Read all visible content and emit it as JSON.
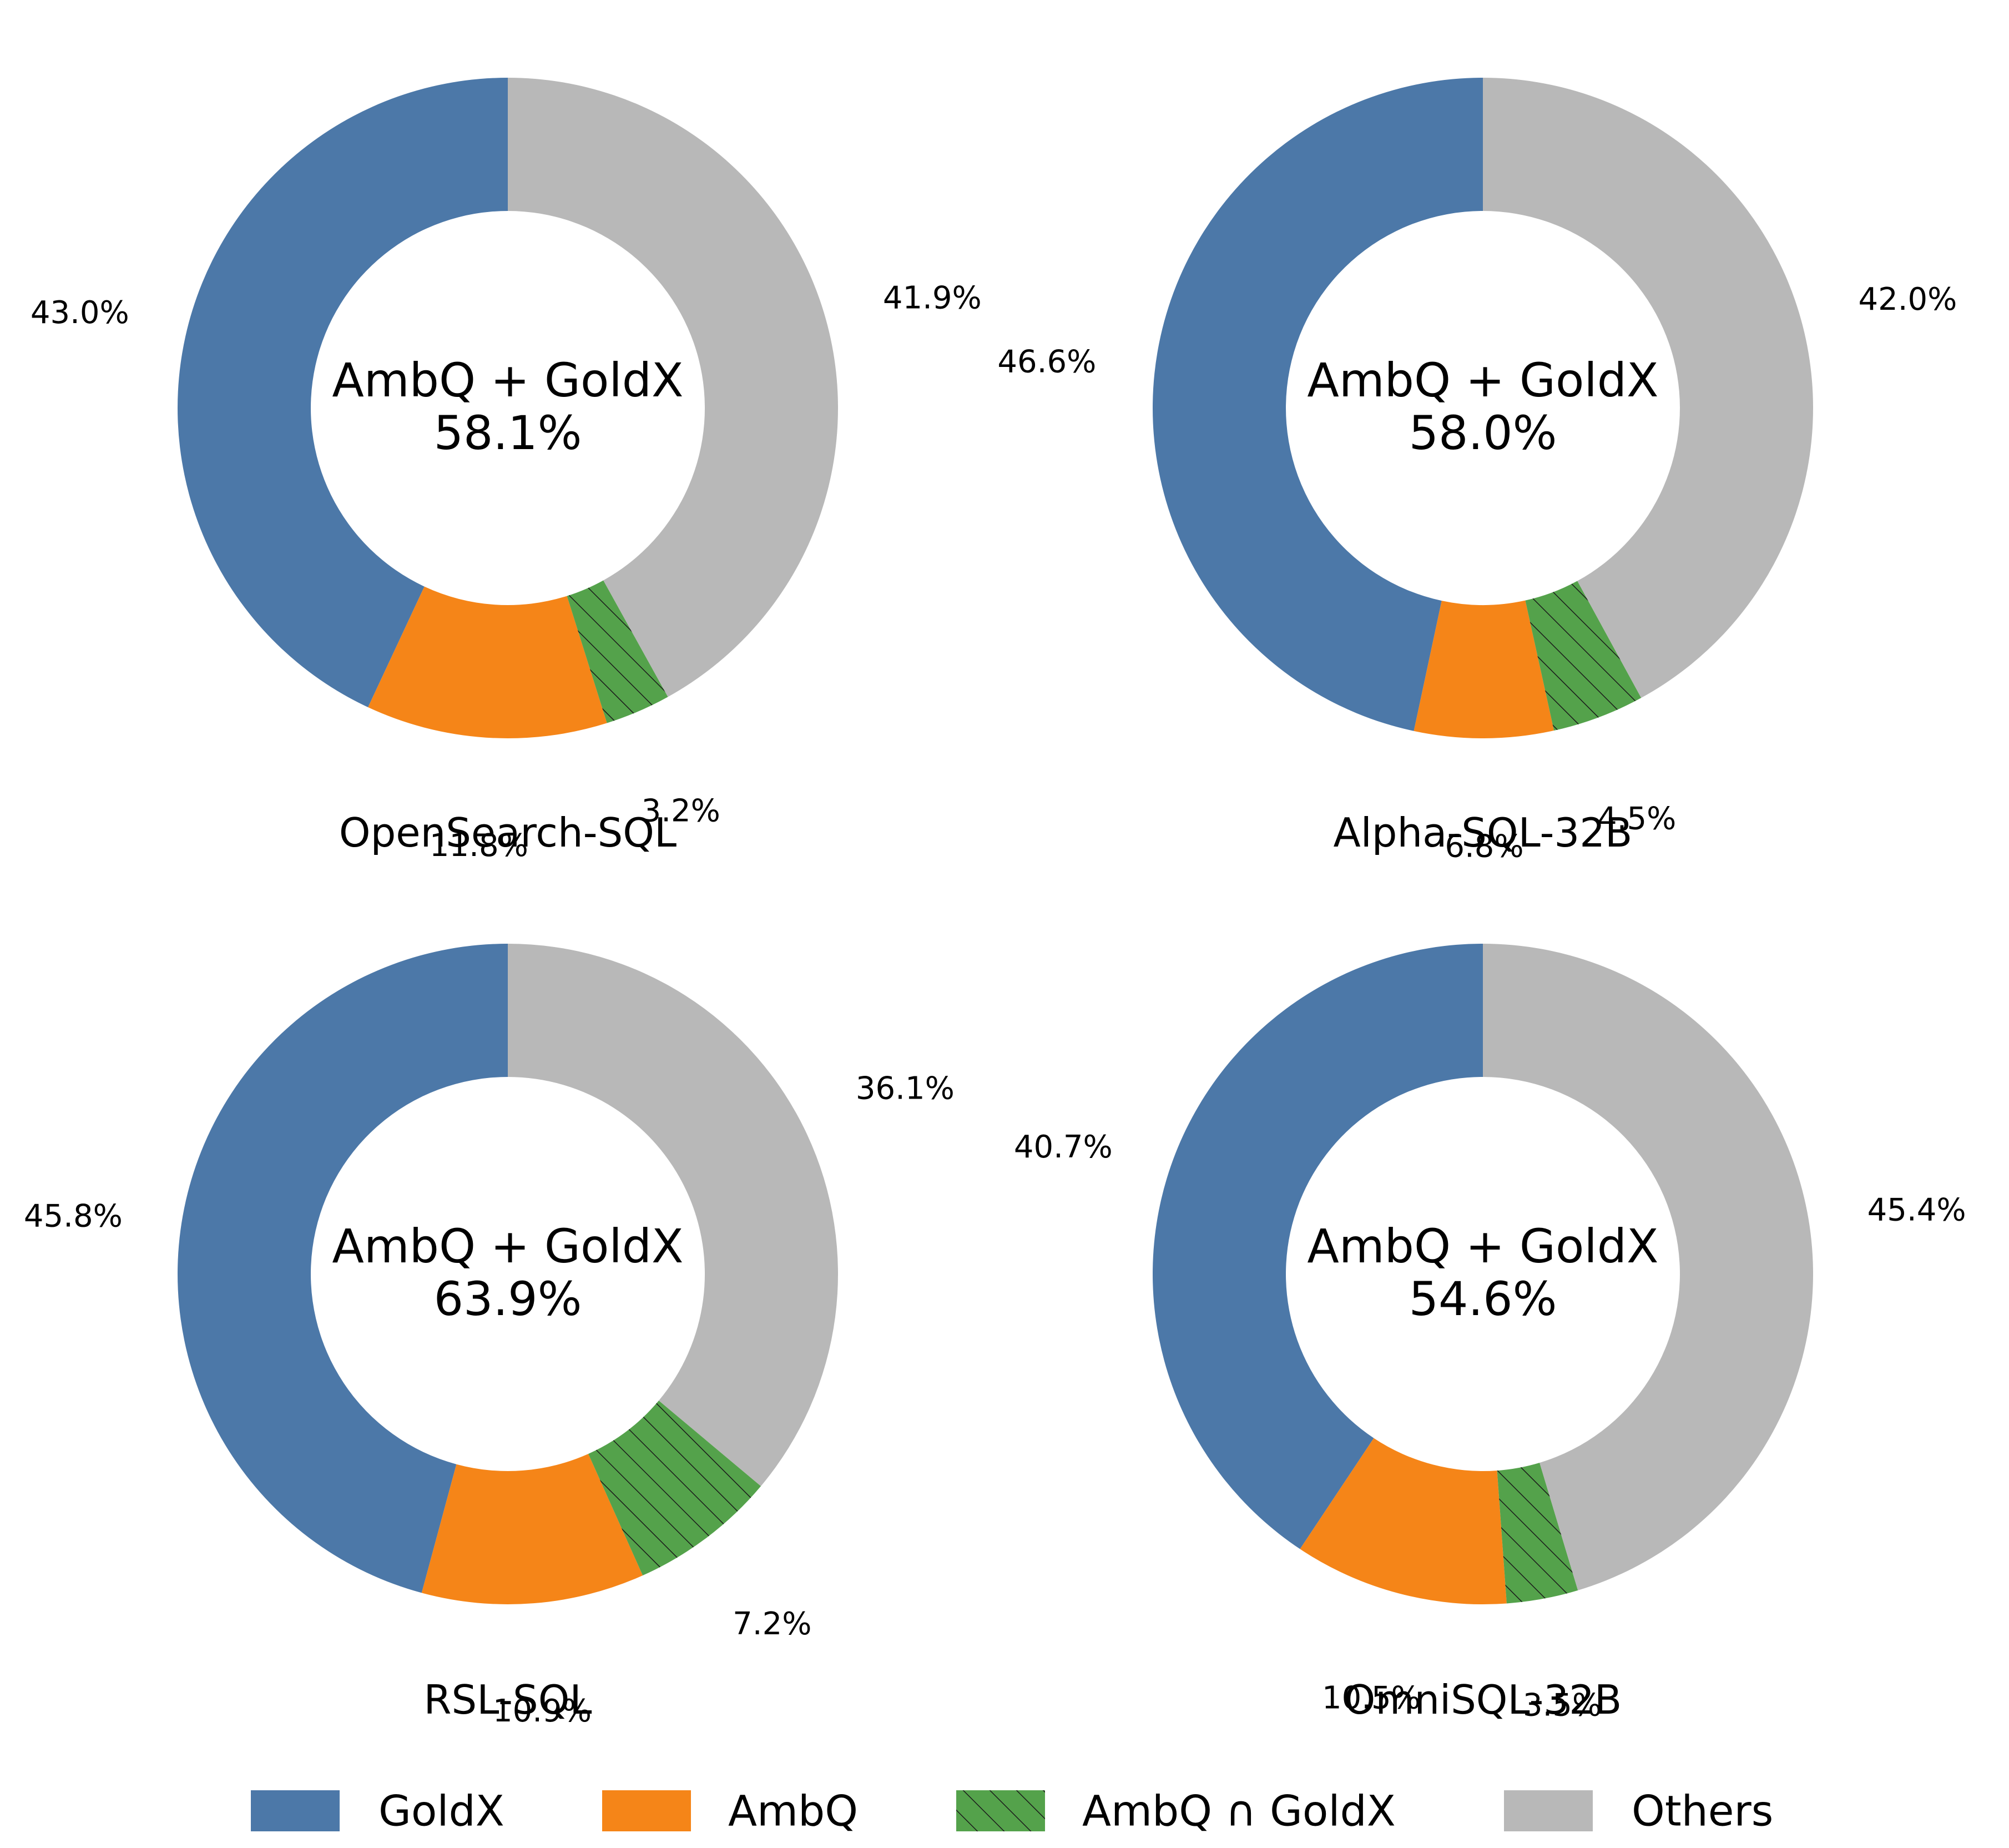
{
  "colors": {
    "GoldX": "#4c78a8",
    "AmbQ": "#f58518",
    "AmbQ ∩ GoldX": "#54a24b",
    "Others": "#b8b8b8"
  },
  "legend": {
    "items": [
      {
        "label": "GoldX",
        "hatch": false
      },
      {
        "label": "AmbQ",
        "hatch": false
      },
      {
        "label": "AmbQ ∩ GoldX",
        "hatch": true
      },
      {
        "label": "Others",
        "hatch": false
      }
    ]
  },
  "chart_data": [
    {
      "type": "pie",
      "title": "OpenSearch-SQL",
      "center_label": "AmbQ + GoldX",
      "center_value": "58.1%",
      "categories": [
        "GoldX",
        "AmbQ",
        "AmbQ ∩ GoldX",
        "Others"
      ],
      "values": [
        43.0,
        11.8,
        3.2,
        41.9
      ],
      "labels": [
        "43.0%",
        "11.8%",
        "3.2%",
        "41.9%"
      ]
    },
    {
      "type": "pie",
      "title": "Alpha-SQL-32B",
      "center_label": "AmbQ + GoldX",
      "center_value": "58.0%",
      "categories": [
        "GoldX",
        "AmbQ",
        "AmbQ ∩ GoldX",
        "Others"
      ],
      "values": [
        46.6,
        6.8,
        4.5,
        42.0
      ],
      "labels": [
        "46.6%",
        "6.8%",
        "4.5%",
        "42.0%"
      ]
    },
    {
      "type": "pie",
      "title": "RSL-SQL",
      "center_label": "AmbQ + GoldX",
      "center_value": "63.9%",
      "categories": [
        "GoldX",
        "AmbQ",
        "AmbQ ∩ GoldX",
        "Others"
      ],
      "values": [
        45.8,
        10.9,
        7.2,
        36.1
      ],
      "labels": [
        "45.8%",
        "10.9%",
        "7.2%",
        "36.1%"
      ]
    },
    {
      "type": "pie",
      "title": "OmniSQL-32B",
      "center_label": "AmbQ + GoldX",
      "center_value": "54.6%",
      "categories": [
        "GoldX",
        "AmbQ",
        "AmbQ ∩ GoldX",
        "Others"
      ],
      "values": [
        40.7,
        10.5,
        3.5,
        45.4
      ],
      "labels": [
        "40.7%",
        "10.5%",
        "3.5%",
        "45.4%"
      ]
    }
  ]
}
